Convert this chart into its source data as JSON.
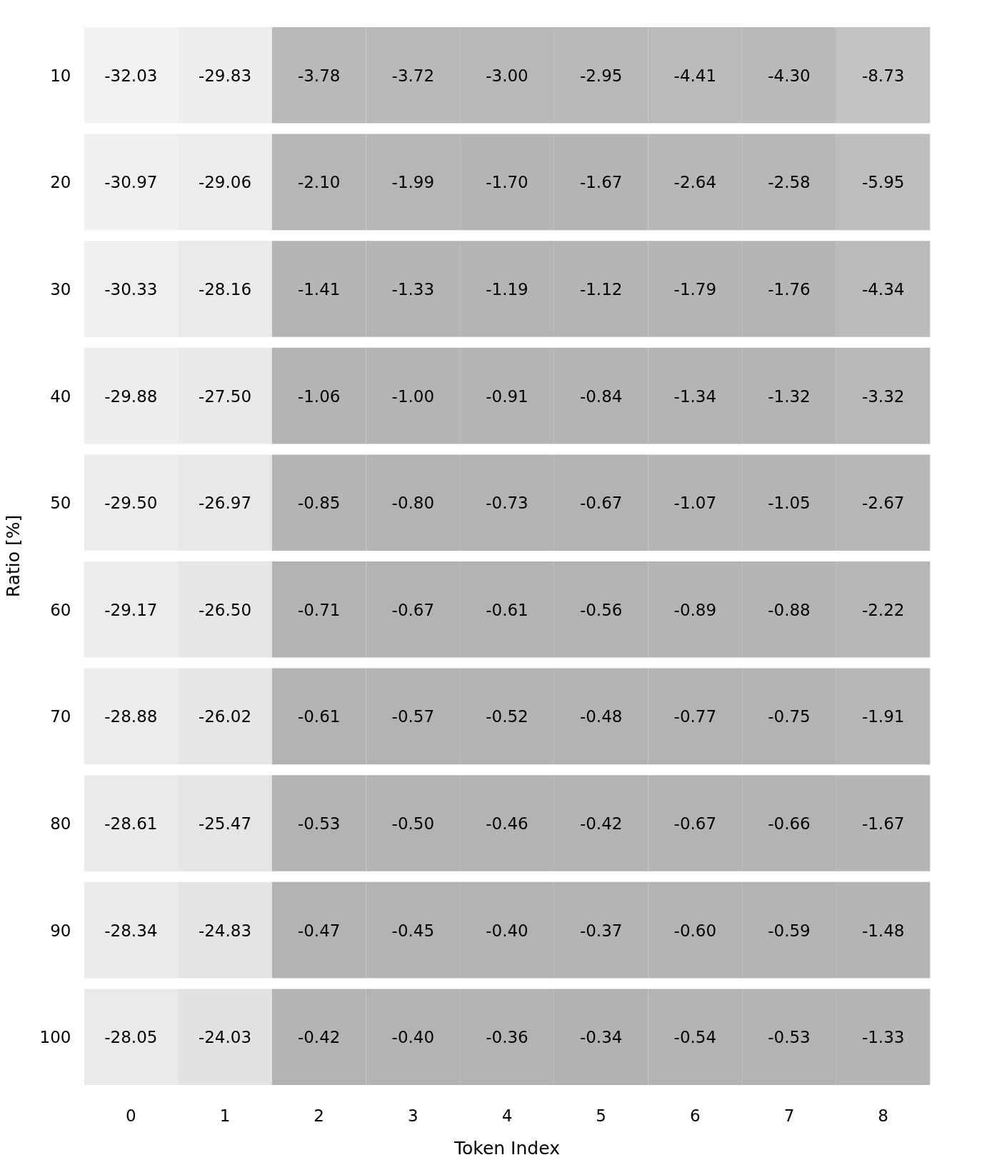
{
  "chart_data": {
    "type": "heatmap",
    "xlabel": "Token Index",
    "ylabel": "Ratio [%]",
    "categories": [
      "0",
      "1",
      "2",
      "3",
      "4",
      "5",
      "6",
      "7",
      "8"
    ],
    "y_categories": [
      "10",
      "20",
      "30",
      "40",
      "50",
      "60",
      "70",
      "80",
      "90",
      "100"
    ],
    "cells": [
      [
        -32.03,
        -29.83,
        -3.78,
        -3.72,
        -3.0,
        -2.95,
        -4.41,
        -4.3,
        -8.73
      ],
      [
        -30.97,
        -29.06,
        -2.1,
        -1.99,
        -1.7,
        -1.67,
        -2.64,
        -2.58,
        -5.95
      ],
      [
        -30.33,
        -28.16,
        -1.41,
        -1.33,
        -1.19,
        -1.12,
        -1.79,
        -1.76,
        -4.34
      ],
      [
        -29.88,
        -27.5,
        -1.06,
        -1.0,
        -0.91,
        -0.84,
        -1.34,
        -1.32,
        -3.32
      ],
      [
        -29.5,
        -26.97,
        -0.85,
        -0.8,
        -0.73,
        -0.67,
        -1.07,
        -1.05,
        -2.67
      ],
      [
        -29.17,
        -26.5,
        -0.71,
        -0.67,
        -0.61,
        -0.56,
        -0.89,
        -0.88,
        -2.22
      ],
      [
        -28.88,
        -26.02,
        -0.61,
        -0.57,
        -0.52,
        -0.48,
        -0.77,
        -0.75,
        -1.91
      ],
      [
        -28.61,
        -25.47,
        -0.53,
        -0.5,
        -0.46,
        -0.42,
        -0.67,
        -0.66,
        -1.67
      ],
      [
        -28.34,
        -24.83,
        -0.47,
        -0.45,
        -0.4,
        -0.37,
        -0.6,
        -0.59,
        -1.48
      ],
      [
        -28.05,
        -24.03,
        -0.42,
        -0.4,
        -0.36,
        -0.34,
        -0.54,
        -0.53,
        -1.33
      ]
    ],
    "cell_labels": [
      [
        "-32.03",
        "-29.83",
        "-3.78",
        "-3.72",
        "-3.00",
        "-2.95",
        "-4.41",
        "-4.30",
        "-8.73"
      ],
      [
        "-30.97",
        "-29.06",
        "-2.10",
        "-1.99",
        "-1.70",
        "-1.67",
        "-2.64",
        "-2.58",
        "-5.95"
      ],
      [
        "-30.33",
        "-28.16",
        "-1.41",
        "-1.33",
        "-1.19",
        "-1.12",
        "-1.79",
        "-1.76",
        "-4.34"
      ],
      [
        "-29.88",
        "-27.50",
        "-1.06",
        "-1.00",
        "-0.91",
        "-0.84",
        "-1.34",
        "-1.32",
        "-3.32"
      ],
      [
        "-29.50",
        "-26.97",
        "-0.85",
        "-0.80",
        "-0.73",
        "-0.67",
        "-1.07",
        "-1.05",
        "-2.67"
      ],
      [
        "-29.17",
        "-26.50",
        "-0.71",
        "-0.67",
        "-0.61",
        "-0.56",
        "-0.89",
        "-0.88",
        "-2.22"
      ],
      [
        "-28.88",
        "-26.02",
        "-0.61",
        "-0.57",
        "-0.52",
        "-0.48",
        "-0.77",
        "-0.75",
        "-1.91"
      ],
      [
        "-28.61",
        "-25.47",
        "-0.53",
        "-0.50",
        "-0.46",
        "-0.42",
        "-0.67",
        "-0.66",
        "-1.67"
      ],
      [
        "-28.34",
        "-24.83",
        "-0.47",
        "-0.45",
        "-0.40",
        "-0.37",
        "-0.60",
        "-0.59",
        "-1.48"
      ],
      [
        "-28.05",
        "-24.03",
        "-0.42",
        "-0.40",
        "-0.36",
        "-0.34",
        "-0.54",
        "-0.53",
        "-1.33"
      ]
    ]
  }
}
